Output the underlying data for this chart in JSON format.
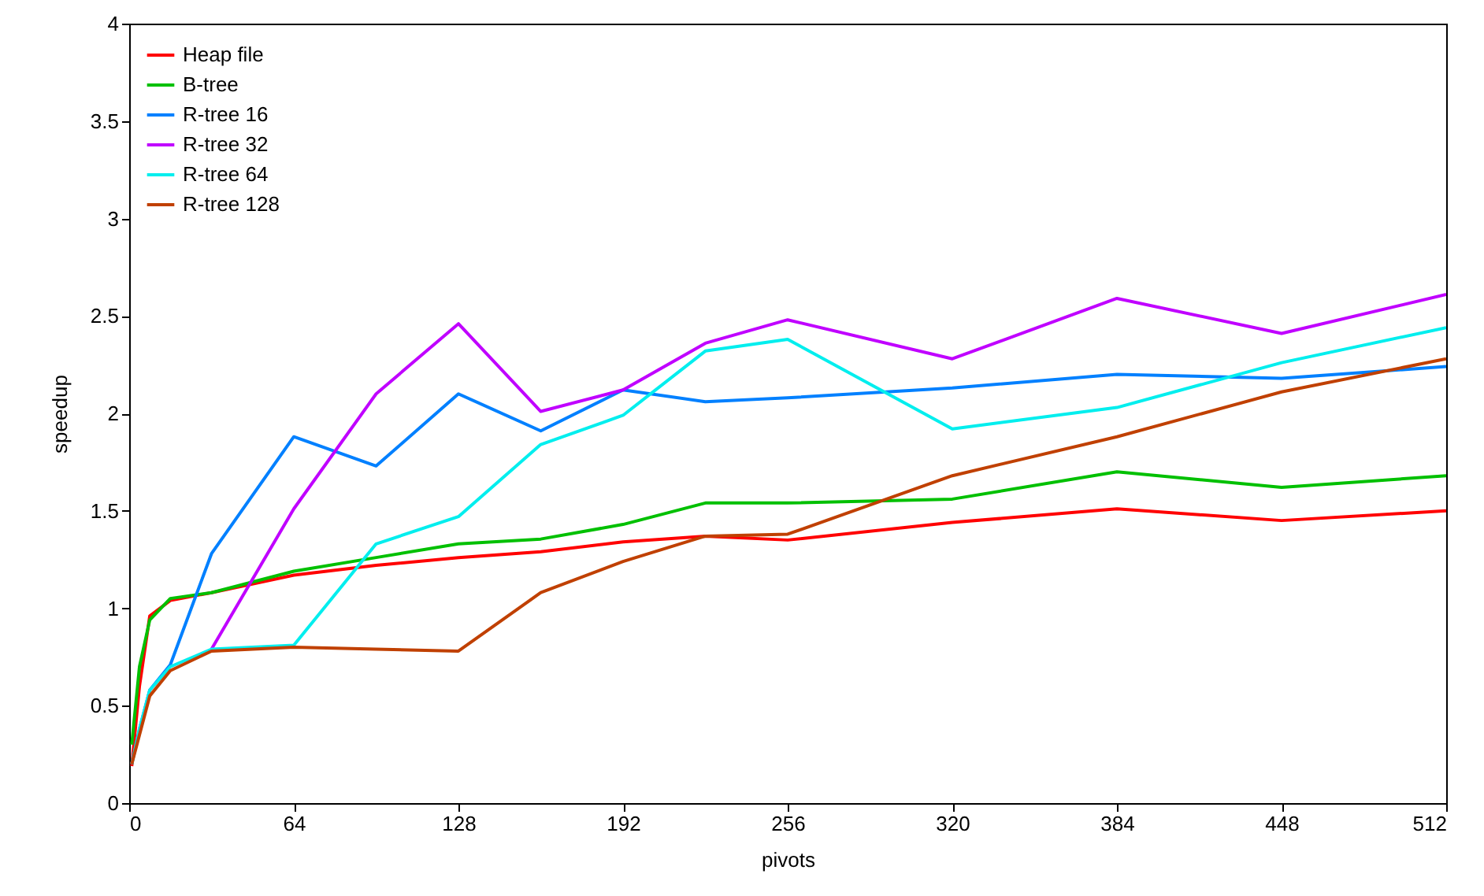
{
  "chart_data": {
    "type": "line",
    "xlabel": "pivots",
    "ylabel": "speedup",
    "xlim": [
      0,
      512
    ],
    "xticks": [
      0,
      64,
      128,
      192,
      256,
      320,
      384,
      448,
      512
    ],
    "ylim": [
      0,
      4
    ],
    "yticks": [
      0,
      0.5,
      1,
      1.5,
      2,
      2.5,
      3,
      3.5,
      4
    ],
    "grid": false,
    "legend": "top left",
    "marker": "none",
    "line_style": "solid",
    "x": [
      1,
      4,
      8,
      16,
      32,
      64,
      96,
      128,
      160,
      192,
      224,
      256,
      320,
      384,
      448,
      512
    ],
    "series": [
      {
        "name": "Heap file",
        "color": "#ff0000",
        "values": [
          0.19,
          0.6,
          0.96,
          1.04,
          1.08,
          1.17,
          1.22,
          1.26,
          1.29,
          1.34,
          1.37,
          1.35,
          1.44,
          1.51,
          1.45,
          1.5
        ]
      },
      {
        "name": "B-tree",
        "color": "#00c000",
        "values": [
          0.3,
          0.7,
          0.94,
          1.05,
          1.08,
          1.19,
          1.26,
          1.33,
          1.355,
          1.43,
          1.54,
          1.54,
          1.56,
          1.7,
          1.62,
          1.68
        ]
      },
      {
        "name": "R-tree 16",
        "color": "#0080ff",
        "values": [
          0.2,
          0.38,
          0.58,
          0.71,
          1.28,
          1.88,
          1.73,
          2.1,
          1.91,
          2.12,
          2.06,
          2.08,
          2.13,
          2.2,
          2.18,
          2.24
        ]
      },
      {
        "name": "R-tree 32",
        "color": "#c000ff",
        "values": [
          null,
          null,
          null,
          null,
          0.79,
          1.51,
          2.1,
          2.46,
          2.01,
          2.12,
          2.36,
          2.48,
          2.28,
          2.59,
          2.41,
          2.61
        ]
      },
      {
        "name": "R-tree 64",
        "color": "#00eeee",
        "values": [
          0.2,
          0.38,
          0.58,
          0.7,
          0.79,
          0.81,
          1.33,
          1.47,
          1.84,
          1.99,
          2.32,
          2.38,
          1.92,
          2.03,
          2.26,
          2.44
        ]
      },
      {
        "name": "R-tree 128",
        "color": "#c04000",
        "values": [
          0.2,
          0.35,
          0.55,
          0.68,
          0.78,
          0.8,
          0.79,
          0.78,
          1.08,
          1.24,
          1.37,
          1.38,
          1.68,
          1.88,
          2.11,
          2.28
        ]
      }
    ]
  }
}
